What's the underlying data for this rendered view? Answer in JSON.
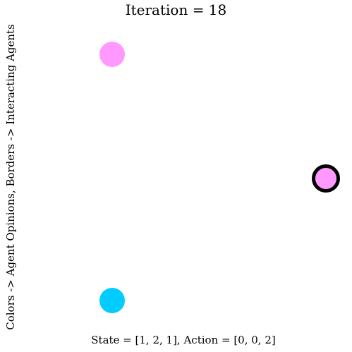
{
  "title": "Iteration = 18",
  "ylabel": "Colors -> Agent Opinions, Borders -> Interacting Agents",
  "footer": "State = [1, 2, 1], Action = [0, 0, 2]",
  "agents": [
    {
      "color": "#ff99ff",
      "interacting": false
    },
    {
      "color": "#ff99ff",
      "interacting": true
    },
    {
      "color": "#00ccff",
      "interacting": false
    }
  ]
}
